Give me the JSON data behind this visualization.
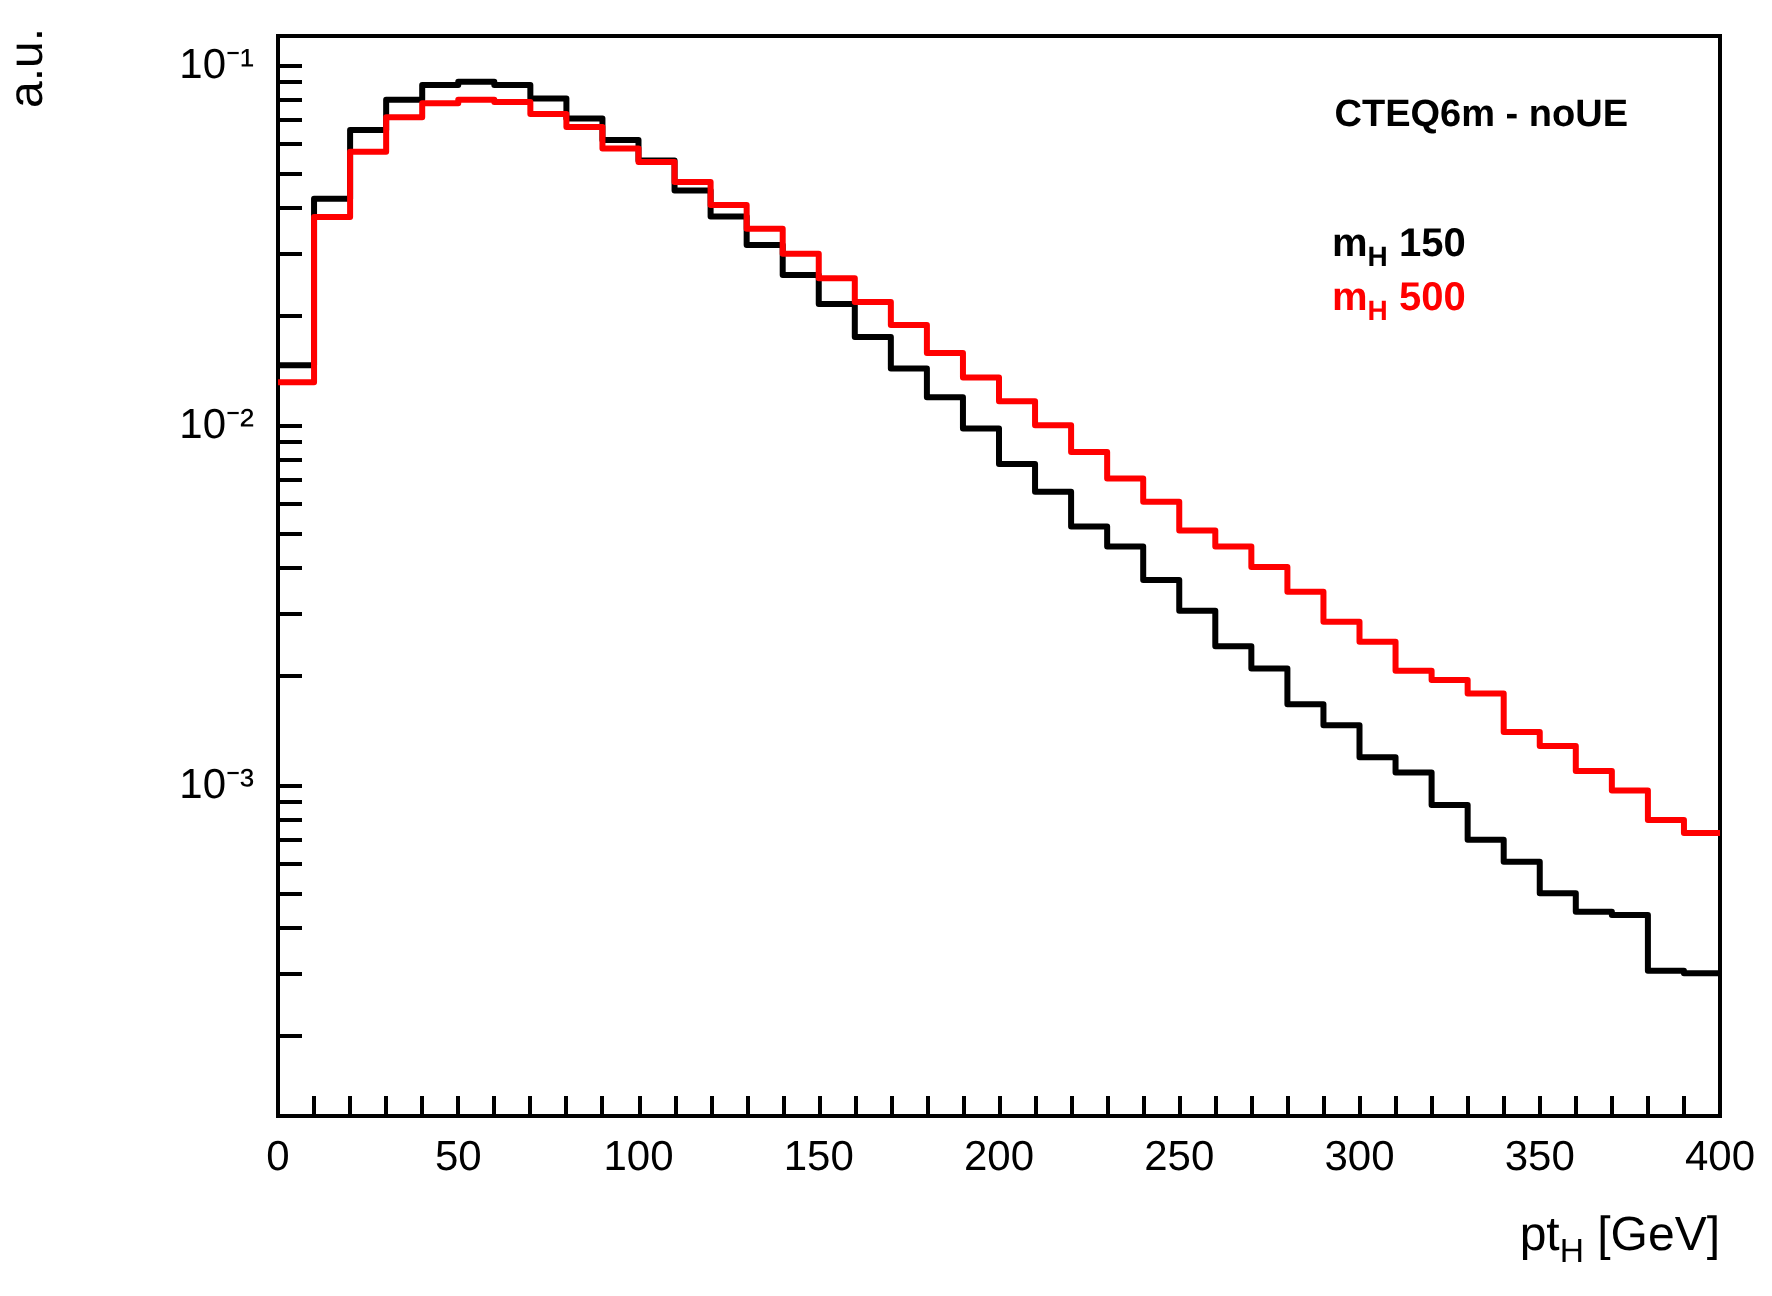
{
  "chart_data": {
    "type": "histogram",
    "title": "CTEQ6m - noUE",
    "xlabel": "pt$_{H}$   [GeV]",
    "ylabel": "a.u.",
    "bins": [
      0,
      10,
      20,
      30,
      40,
      50,
      60,
      70,
      80,
      90,
      100,
      110,
      120,
      130,
      140,
      150,
      160,
      170,
      180,
      190,
      200,
      210,
      220,
      230,
      240,
      250,
      260,
      270,
      280,
      290,
      300,
      310,
      320,
      330,
      340,
      350,
      360,
      370,
      380,
      390,
      400
    ],
    "series": [
      {
        "name": "m$_{H}$ 150",
        "color": "#000000",
        "values": [
          0.0146,
          0.0424,
          0.0658,
          0.0798,
          0.0877,
          0.0895,
          0.0877,
          0.0805,
          0.0708,
          0.0617,
          0.0541,
          0.0447,
          0.0378,
          0.0315,
          0.026,
          0.0216,
          0.0175,
          0.0143,
          0.0119,
          0.00975,
          0.00777,
          0.0065,
          0.00521,
          0.00458,
          0.0037,
          0.00304,
          0.00242,
          0.0021,
          0.00167,
          0.00146,
          0.00119,
          0.00108,
          0.000877,
          0.000702,
          0.00061,
          0.000499,
          0.000443,
          0.000434,
          0.000304,
          0.000299
        ]
      },
      {
        "name": "m$_{H}$ 500",
        "color": "#ff0000",
        "values": [
          0.0131,
          0.0377,
          0.0572,
          0.0714,
          0.0781,
          0.0798,
          0.0787,
          0.0729,
          0.067,
          0.0584,
          0.0536,
          0.0472,
          0.0407,
          0.035,
          0.0298,
          0.0255,
          0.0219,
          0.0189,
          0.0158,
          0.0135,
          0.0116,
          0.00996,
          0.00839,
          0.00708,
          0.0061,
          0.00508,
          0.00458,
          0.00402,
          0.00343,
          0.00283,
          0.00249,
          0.00207,
          0.00195,
          0.00179,
          0.0014,
          0.00128,
          0.00109,
          0.000962,
          0.000797,
          0.000733
        ]
      }
    ],
    "xlim": [
      0,
      400
    ],
    "xticks": [
      0,
      {
        "value": 10,
        "label": null
      },
      {
        "value": 20,
        "label": null
      },
      {
        "value": 30,
        "label": null
      },
      {
        "value": 40,
        "label": null
      },
      50,
      {
        "value": 60,
        "label": null
      },
      {
        "value": 70,
        "label": null
      },
      {
        "value": 80,
        "label": null
      },
      {
        "value": 90,
        "label": null
      },
      100,
      {
        "value": 110,
        "label": null
      },
      {
        "value": 120,
        "label": null
      },
      {
        "value": 130,
        "label": null
      },
      {
        "value": 140,
        "label": null
      },
      150,
      {
        "value": 160,
        "label": null
      },
      {
        "value": 170,
        "label": null
      },
      {
        "value": 180,
        "label": null
      },
      {
        "value": 190,
        "label": null
      },
      200,
      {
        "value": 210,
        "label": null
      },
      {
        "value": 220,
        "label": null
      },
      {
        "value": 230,
        "label": null
      },
      {
        "value": 240,
        "label": null
      },
      250,
      {
        "value": 260,
        "label": null
      },
      {
        "value": 270,
        "label": null
      },
      {
        "value": 280,
        "label": null
      },
      {
        "value": 290,
        "label": null
      },
      300,
      {
        "value": 310,
        "label": null
      },
      {
        "value": 320,
        "label": null
      },
      {
        "value": 330,
        "label": null
      },
      {
        "value": 340,
        "label": null
      },
      350,
      {
        "value": 360,
        "label": null
      },
      {
        "value": 370,
        "label": null
      },
      {
        "value": 380,
        "label": null
      },
      {
        "value": 390,
        "label": null
      },
      400
    ],
    "ylim": [
      0.00012,
      0.12
    ],
    "yticks": [
      {
        "value": 0.0002,
        "label": null
      },
      {
        "value": 0.0003,
        "label": null
      },
      {
        "value": 0.0004,
        "label": null
      },
      {
        "value": 0.0005,
        "label": null
      },
      {
        "value": 0.0006,
        "label": null
      },
      {
        "value": 0.0007,
        "label": null
      },
      {
        "value": 0.0008,
        "label": null
      },
      {
        "value": 0.0009,
        "label": null
      },
      {
        "value": 0.001,
        "label": "10⁻³"
      },
      {
        "value": 0.002,
        "label": null
      },
      {
        "value": 0.003,
        "label": null
      },
      {
        "value": 0.004,
        "label": null
      },
      {
        "value": 0.005,
        "label": null
      },
      {
        "value": 0.006,
        "label": null
      },
      {
        "value": 0.007,
        "label": null
      },
      {
        "value": 0.008,
        "label": null
      },
      {
        "value": 0.009,
        "label": null
      },
      {
        "value": 0.01,
        "label": "10⁻²"
      },
      {
        "value": 0.02,
        "label": null
      },
      {
        "value": 0.03,
        "label": null
      },
      {
        "value": 0.04,
        "label": null
      },
      {
        "value": 0.05,
        "label": null
      },
      {
        "value": 0.06,
        "label": null
      },
      {
        "value": 0.07,
        "label": null
      },
      {
        "value": 0.08,
        "label": null
      },
      {
        "value": 0.09,
        "label": null
      },
      {
        "value": 0.1,
        "label": "10⁻¹"
      }
    ],
    "log": true,
    "grid": false,
    "legend": "top right"
  }
}
